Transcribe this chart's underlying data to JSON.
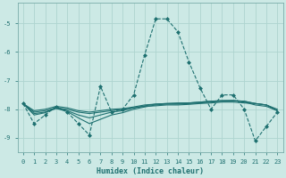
{
  "xlabel": "Humidex (Indice chaleur)",
  "background_color": "#cce9e5",
  "grid_color": "#aed4cf",
  "line_color": "#1e7070",
  "xlim": [
    -0.5,
    23.5
  ],
  "ylim": [
    -9.5,
    -4.3
  ],
  "yticks": [
    -9,
    -8,
    -7,
    -6,
    -5
  ],
  "xticks": [
    0,
    1,
    2,
    3,
    4,
    5,
    6,
    7,
    8,
    9,
    10,
    11,
    12,
    13,
    14,
    15,
    16,
    17,
    18,
    19,
    20,
    21,
    22,
    23
  ],
  "series": [
    {
      "y": [
        -7.8,
        -8.5,
        -8.2,
        -7.9,
        -8.1,
        -8.5,
        -8.9,
        -7.2,
        -8.1,
        -8.0,
        -7.5,
        -6.1,
        -4.85,
        -4.85,
        -5.3,
        -6.35,
        -7.25,
        -8.0,
        -7.5,
        -7.5,
        -8.0,
        -9.1,
        -8.6,
        -8.1
      ],
      "dashed": true,
      "marker": true
    },
    {
      "y": [
        -7.8,
        -8.1,
        -8.05,
        -7.95,
        -8.0,
        -8.1,
        -8.15,
        -8.1,
        -8.05,
        -8.0,
        -7.95,
        -7.9,
        -7.88,
        -7.85,
        -7.85,
        -7.83,
        -7.8,
        -7.78,
        -7.75,
        -7.75,
        -7.78,
        -7.8,
        -7.85,
        -8.05
      ],
      "dashed": false,
      "marker": false
    },
    {
      "y": [
        -7.8,
        -8.05,
        -8.0,
        -7.9,
        -7.95,
        -8.05,
        -8.1,
        -8.05,
        -8.0,
        -7.98,
        -7.92,
        -7.85,
        -7.82,
        -7.8,
        -7.8,
        -7.78,
        -7.75,
        -7.72,
        -7.7,
        -7.7,
        -7.72,
        -7.8,
        -7.85,
        -8.05
      ],
      "dashed": false,
      "marker": false
    },
    {
      "y": [
        -7.8,
        -8.15,
        -8.1,
        -7.95,
        -8.05,
        -8.2,
        -8.3,
        -8.2,
        -8.1,
        -8.05,
        -7.95,
        -7.88,
        -7.82,
        -7.8,
        -7.78,
        -7.78,
        -7.75,
        -7.72,
        -7.7,
        -7.7,
        -7.72,
        -7.8,
        -7.85,
        -8.0
      ],
      "dashed": false,
      "marker": false
    },
    {
      "y": [
        -7.8,
        -8.2,
        -8.12,
        -7.97,
        -8.08,
        -8.3,
        -8.5,
        -8.35,
        -8.2,
        -8.12,
        -8.0,
        -7.92,
        -7.85,
        -7.82,
        -7.82,
        -7.8,
        -7.78,
        -7.75,
        -7.72,
        -7.7,
        -7.75,
        -7.85,
        -7.9,
        -8.05
      ],
      "dashed": false,
      "marker": false
    }
  ]
}
